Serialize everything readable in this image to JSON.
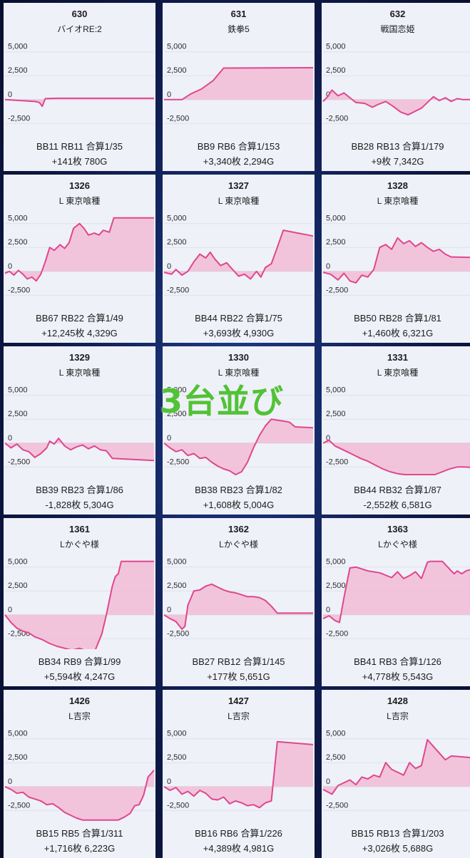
{
  "overlay_text": "3台並び",
  "cards": [
    {
      "no": "630",
      "name": "バイオRE:2",
      "stat1": "BB11 RB11 合算1/35",
      "stat2": "+141枚 780G"
    },
    {
      "no": "631",
      "name": "鉄拳5",
      "stat1": "BB9 RB6 合算1/153",
      "stat2": "+3,340枚 2,294G"
    },
    {
      "no": "632",
      "name": "戦国恋姫",
      "stat1": "BB28 RB13 合算1/179",
      "stat2": "+9枚 7,342G"
    },
    {
      "no": "1326",
      "name": "L 東京喰種",
      "stat1": "BB67 RB22 合算1/49",
      "stat2": "+12,245枚 4,329G"
    },
    {
      "no": "1327",
      "name": "L 東京喰種",
      "stat1": "BB44 RB22 合算1/75",
      "stat2": "+3,693枚 4,930G"
    },
    {
      "no": "1328",
      "name": "L 東京喰種",
      "stat1": "BB50 RB28 合算1/81",
      "stat2": "+1,460枚 6,321G"
    },
    {
      "no": "1329",
      "name": "L 東京喰種",
      "stat1": "BB39 RB23 合算1/86",
      "stat2": "-1,828枚 5,304G"
    },
    {
      "no": "1330",
      "name": "L 東京喰種",
      "stat1": "BB38 RB23 合算1/82",
      "stat2": "+1,608枚 5,004G"
    },
    {
      "no": "1331",
      "name": "L 東京喰種",
      "stat1": "BB44 RB32 合算1/87",
      "stat2": "-2,552枚 6,581G"
    },
    {
      "no": "1361",
      "name": "Lかぐや様",
      "stat1": "BB34 RB9 合算1/99",
      "stat2": "+5,594枚 4,247G"
    },
    {
      "no": "1362",
      "name": "Lかぐや様",
      "stat1": "BB27 RB12 合算1/145",
      "stat2": "+177枚 5,651G"
    },
    {
      "no": "1363",
      "name": "Lかぐや様",
      "stat1": "BB41 RB3 合算1/126",
      "stat2": "+4,778枚 5,543G"
    },
    {
      "no": "1426",
      "name": "L吉宗",
      "stat1": "BB15 RB5 合算1/311",
      "stat2": "+1,716枚 6,223G"
    },
    {
      "no": "1427",
      "name": "L吉宗",
      "stat1": "BB16 RB6 合算1/226",
      "stat2": "+4,389枚 4,981G"
    },
    {
      "no": "1428",
      "name": "L吉宗",
      "stat1": "BB15 RB13 合算1/203",
      "stat2": "+3,026枚 5,688G"
    }
  ],
  "chart_data": [
    {
      "type": "area",
      "xlim": [
        0,
        1
      ],
      "ylim": [
        -3000,
        5500
      ],
      "yticks": [
        "5,000",
        "2,500",
        "0",
        "-2,500"
      ],
      "line_color": "#e0468e",
      "fill_color": "#f2bcd6",
      "x": [
        0,
        0.2,
        0.23,
        0.25,
        0.27,
        0.35,
        1
      ],
      "y": [
        0,
        -200,
        -300,
        -700,
        100,
        141,
        141
      ]
    },
    {
      "type": "area",
      "xlim": [
        0,
        1
      ],
      "ylim": [
        -3000,
        5500
      ],
      "yticks": [
        "5,000",
        "2,500",
        "0",
        "-2,500"
      ],
      "line_color": "#e0468e",
      "fill_color": "#f2bcd6",
      "x": [
        0,
        0.12,
        0.18,
        0.25,
        0.33,
        0.4,
        1
      ],
      "y": [
        0,
        0,
        600,
        1100,
        2000,
        3300,
        3340
      ]
    },
    {
      "type": "area",
      "xlim": [
        0,
        1
      ],
      "ylim": [
        -3000,
        5500
      ],
      "yticks": [
        "5,000",
        "2,500",
        "0",
        "-2,500"
      ],
      "line_color": "#e0468e",
      "fill_color": "#f2bcd6",
      "x": [
        0,
        0.03,
        0.06,
        0.1,
        0.14,
        0.18,
        0.22,
        0.28,
        0.33,
        0.37,
        0.42,
        0.47,
        0.52,
        0.57,
        0.62,
        0.66,
        0.7,
        0.74,
        0.78,
        0.82,
        0.86,
        0.9,
        0.94,
        1
      ],
      "y": [
        -200,
        300,
        1000,
        400,
        700,
        200,
        -300,
        -400,
        -800,
        -500,
        -200,
        -700,
        -1300,
        -1600,
        -1200,
        -900,
        -300,
        300,
        -100,
        200,
        -200,
        100,
        0,
        9
      ]
    },
    {
      "type": "area",
      "xlim": [
        0,
        1
      ],
      "ylim": [
        -3000,
        5500
      ],
      "yticks": [
        "5,000",
        "2,500",
        "0",
        "-2,500"
      ],
      "line_color": "#e0468e",
      "fill_color": "#f2bcd6",
      "x": [
        0,
        0.03,
        0.06,
        0.09,
        0.12,
        0.15,
        0.18,
        0.21,
        0.24,
        0.27,
        0.3,
        0.33,
        0.37,
        0.4,
        0.43,
        0.46,
        0.5,
        0.53,
        0.56,
        0.6,
        0.63,
        0.66,
        0.7,
        0.73,
        1
      ],
      "y": [
        -200,
        0,
        -400,
        100,
        -300,
        -800,
        -600,
        -1000,
        -300,
        1000,
        2500,
        2200,
        2800,
        2400,
        3000,
        4500,
        5000,
        4500,
        3800,
        4000,
        3800,
        4300,
        4100,
        5600,
        5600
      ]
    },
    {
      "type": "area",
      "xlim": [
        0,
        1
      ],
      "ylim": [
        -3000,
        5500
      ],
      "yticks": [
        "5,000",
        "2,500",
        "0",
        "-2,500"
      ],
      "line_color": "#e0468e",
      "fill_color": "#f2bcd6",
      "x": [
        0,
        0.05,
        0.08,
        0.12,
        0.16,
        0.2,
        0.24,
        0.28,
        0.31,
        0.34,
        0.38,
        0.42,
        0.46,
        0.5,
        0.54,
        0.58,
        0.62,
        0.65,
        0.68,
        0.72,
        0.76,
        0.8,
        1
      ],
      "y": [
        -100,
        -300,
        200,
        -400,
        0,
        1000,
        1800,
        1400,
        2000,
        1300,
        600,
        900,
        200,
        -500,
        -300,
        -800,
        0,
        -600,
        400,
        800,
        2500,
        4300,
        3693
      ]
    },
    {
      "type": "area",
      "xlim": [
        0,
        1
      ],
      "ylim": [
        -3000,
        5500
      ],
      "yticks": [
        "5,000",
        "2,500",
        "0",
        "-2,500"
      ],
      "line_color": "#e0468e",
      "fill_color": "#f2bcd6",
      "x": [
        0,
        0.05,
        0.1,
        0.14,
        0.18,
        0.22,
        0.26,
        0.3,
        0.34,
        0.38,
        0.42,
        0.46,
        0.5,
        0.54,
        0.58,
        0.62,
        0.66,
        0.7,
        0.74,
        0.78,
        0.82,
        0.86,
        1
      ],
      "y": [
        -100,
        -300,
        -900,
        -200,
        -1000,
        -1200,
        -400,
        -600,
        200,
        2500,
        2800,
        2300,
        3500,
        2900,
        3200,
        2600,
        3000,
        2500,
        2100,
        2300,
        1800,
        1500,
        1460
      ]
    },
    {
      "type": "area",
      "xlim": [
        0,
        1
      ],
      "ylim": [
        -3000,
        5500
      ],
      "yticks": [
        "5,000",
        "2,500",
        "0",
        "-2,500"
      ],
      "line_color": "#e0468e",
      "fill_color": "#f2bcd6",
      "x": [
        0,
        0.04,
        0.08,
        0.12,
        0.16,
        0.2,
        0.24,
        0.28,
        0.3,
        0.33,
        0.36,
        0.4,
        0.44,
        0.48,
        0.52,
        0.56,
        0.6,
        0.64,
        0.68,
        0.72,
        1
      ],
      "y": [
        0,
        -500,
        -100,
        -700,
        -900,
        -1500,
        -1100,
        -500,
        200,
        -100,
        500,
        -300,
        -700,
        -400,
        -200,
        -600,
        -300,
        -700,
        -800,
        -1600,
        -1828
      ]
    },
    {
      "type": "area",
      "xlim": [
        0,
        1
      ],
      "ylim": [
        -3000,
        5500
      ],
      "yticks": [
        "5,000",
        "2,500",
        "0",
        "-2,500"
      ],
      "line_color": "#e0468e",
      "fill_color": "#f2bcd6",
      "x": [
        0,
        0.04,
        0.08,
        0.12,
        0.16,
        0.2,
        0.24,
        0.28,
        0.32,
        0.36,
        0.4,
        0.44,
        0.48,
        0.52,
        0.56,
        0.6,
        0.64,
        0.68,
        0.72,
        0.76,
        0.8,
        0.84,
        0.88,
        1
      ],
      "y": [
        0,
        -500,
        -900,
        -700,
        -1300,
        -1100,
        -1600,
        -1500,
        -2000,
        -2400,
        -2700,
        -2900,
        -3300,
        -3000,
        -2000,
        -500,
        800,
        1800,
        2500,
        2400,
        2300,
        2200,
        1700,
        1608
      ]
    },
    {
      "type": "area",
      "xlim": [
        0,
        1
      ],
      "ylim": [
        -3000,
        5500
      ],
      "yticks": [
        "5,000",
        "2,500",
        "0",
        "-2,500"
      ],
      "line_color": "#e0468e",
      "fill_color": "#f2bcd6",
      "x": [
        0,
        0.04,
        0.08,
        0.12,
        0.16,
        0.2,
        0.25,
        0.3,
        0.35,
        0.4,
        0.45,
        0.5,
        0.55,
        0.6,
        0.65,
        0.7,
        0.75,
        0.8,
        0.85,
        0.9,
        0.95,
        1
      ],
      "y": [
        0,
        300,
        -300,
        -600,
        -900,
        -1200,
        -1600,
        -1900,
        -2300,
        -2700,
        -3000,
        -3200,
        -3300,
        -3300,
        -3300,
        -3300,
        -3300,
        -3000,
        -2700,
        -2500,
        -2500,
        -2552
      ]
    },
    {
      "type": "area",
      "xlim": [
        0,
        1
      ],
      "ylim": [
        -3000,
        5500
      ],
      "yticks": [
        "5,000",
        "2,500",
        "0",
        "-2,500"
      ],
      "line_color": "#e0468e",
      "fill_color": "#f2bcd6",
      "x": [
        0,
        0.04,
        0.08,
        0.12,
        0.16,
        0.2,
        0.25,
        0.3,
        0.35,
        0.4,
        0.45,
        0.5,
        0.55,
        0.6,
        0.65,
        0.68,
        0.7,
        0.72,
        0.74,
        0.76,
        0.78,
        1
      ],
      "y": [
        0,
        -800,
        -1400,
        -1700,
        -1900,
        -2300,
        -2600,
        -3000,
        -3300,
        -3500,
        -3700,
        -3500,
        -3800,
        -3900,
        -2000,
        0,
        1500,
        3000,
        4000,
        4300,
        5600,
        5600
      ]
    },
    {
      "type": "area",
      "xlim": [
        0,
        1
      ],
      "ylim": [
        -3000,
        5500
      ],
      "yticks": [
        "5,000",
        "2,500",
        "0",
        "-2,500"
      ],
      "line_color": "#e0468e",
      "fill_color": "#f2bcd6",
      "x": [
        0,
        0.04,
        0.08,
        0.12,
        0.14,
        0.16,
        0.2,
        0.24,
        0.28,
        0.32,
        0.36,
        0.4,
        0.44,
        0.48,
        0.52,
        0.56,
        0.6,
        0.64,
        0.68,
        0.72,
        0.76,
        0.8,
        1
      ],
      "y": [
        0,
        -400,
        -700,
        -1500,
        -1200,
        1000,
        2500,
        2600,
        3000,
        3200,
        2900,
        2600,
        2400,
        2300,
        2100,
        1900,
        1900,
        1800,
        1500,
        900,
        177,
        177,
        177
      ]
    },
    {
      "type": "area",
      "xlim": [
        0,
        1
      ],
      "ylim": [
        -3000,
        5500
      ],
      "yticks": [
        "5,000",
        "2,500",
        "0",
        "-2,500"
      ],
      "line_color": "#e0468e",
      "fill_color": "#f2bcd6",
      "x": [
        0,
        0.04,
        0.08,
        0.11,
        0.14,
        0.18,
        0.22,
        0.3,
        0.38,
        0.46,
        0.5,
        0.54,
        0.58,
        0.62,
        0.66,
        0.7,
        0.72,
        0.74,
        0.8,
        0.86,
        0.88,
        0.9,
        0.93,
        0.96,
        1
      ],
      "y": [
        -400,
        -100,
        -600,
        -800,
        1800,
        4900,
        5000,
        4600,
        4400,
        3900,
        4500,
        3800,
        4100,
        4500,
        3800,
        5500,
        5600,
        5600,
        5600,
        4600,
        4300,
        4600,
        4300,
        4600,
        4778
      ]
    },
    {
      "type": "area",
      "xlim": [
        0,
        1
      ],
      "ylim": [
        -3000,
        5500
      ],
      "yticks": [
        "5,000",
        "2,500",
        "0",
        "-2,500"
      ],
      "line_color": "#e0468e",
      "fill_color": "#f2bcd6",
      "x": [
        0,
        0.04,
        0.08,
        0.12,
        0.16,
        0.2,
        0.24,
        0.28,
        0.32,
        0.36,
        0.4,
        0.44,
        0.48,
        0.52,
        0.56,
        0.6,
        0.64,
        0.68,
        0.72,
        0.76,
        0.8,
        0.84,
        0.87,
        0.9,
        0.93,
        0.96,
        1
      ],
      "y": [
        0,
        -300,
        -700,
        -600,
        -1100,
        -1300,
        -1500,
        -1900,
        -1800,
        -2200,
        -2700,
        -3000,
        -3300,
        -3500,
        -3500,
        -3500,
        -3500,
        -3500,
        -3500,
        -3500,
        -3200,
        -2800,
        -2000,
        -1900,
        -900,
        1000,
        1716
      ]
    },
    {
      "type": "area",
      "xlim": [
        0,
        1
      ],
      "ylim": [
        -3000,
        5500
      ],
      "yticks": [
        "5,000",
        "2,500",
        "0",
        "-2,500"
      ],
      "line_color": "#e0468e",
      "fill_color": "#f2bcd6",
      "x": [
        0,
        0.04,
        0.08,
        0.12,
        0.16,
        0.2,
        0.24,
        0.28,
        0.32,
        0.36,
        0.4,
        0.44,
        0.48,
        0.52,
        0.56,
        0.6,
        0.64,
        0.68,
        0.72,
        0.76,
        1
      ],
      "y": [
        0,
        -400,
        -100,
        -800,
        -500,
        -1000,
        -400,
        -700,
        -1300,
        -1400,
        -1100,
        -1800,
        -1500,
        -1700,
        -2000,
        -1900,
        -2200,
        -1700,
        -1500,
        4700,
        4389
      ]
    },
    {
      "type": "area",
      "xlim": [
        0,
        1
      ],
      "ylim": [
        -3000,
        5500
      ],
      "yticks": [
        "5,000",
        "2,500",
        "0",
        "-2,500"
      ],
      "line_color": "#e0468e",
      "fill_color": "#f2bcd6",
      "x": [
        0,
        0.06,
        0.1,
        0.14,
        0.18,
        0.22,
        0.26,
        0.3,
        0.34,
        0.38,
        0.42,
        0.46,
        0.5,
        0.54,
        0.58,
        0.62,
        0.66,
        0.7,
        0.74,
        0.78,
        0.82,
        0.86,
        1
      ],
      "y": [
        -300,
        -800,
        100,
        400,
        700,
        200,
        1000,
        800,
        1200,
        1000,
        2500,
        1800,
        1500,
        1200,
        2500,
        1900,
        2200,
        4900,
        4200,
        3500,
        2800,
        3200,
        3026
      ]
    }
  ]
}
